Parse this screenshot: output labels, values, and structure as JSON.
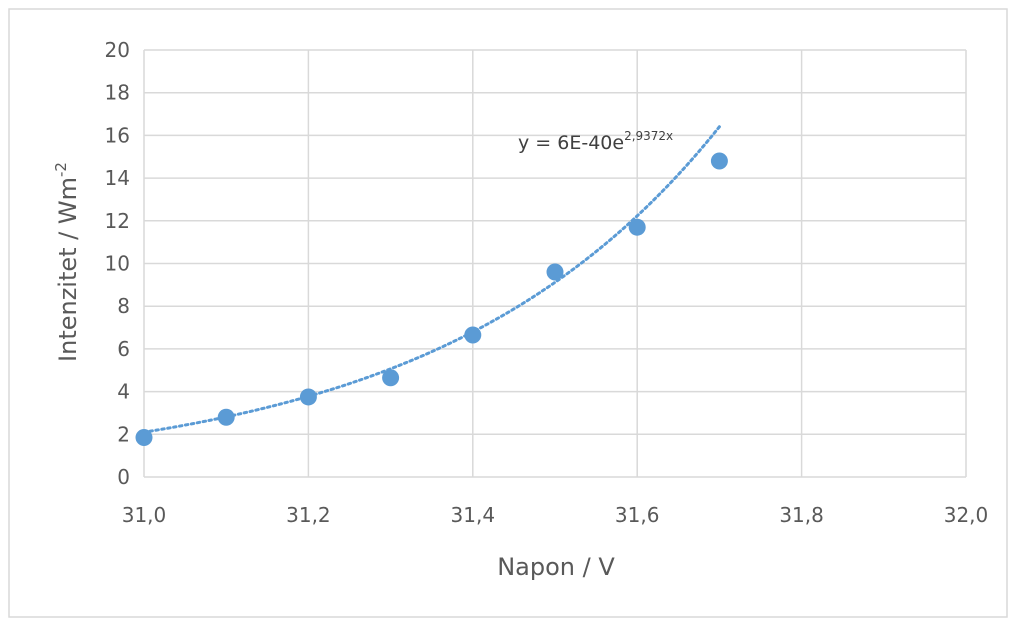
{
  "chart_data": {
    "type": "scatter",
    "title": "",
    "xlabel": "Napon / V",
    "ylabel": {
      "main": "Intenzitet  / Wm",
      "superscript": "-2"
    },
    "xlim": [
      31.0,
      32.0
    ],
    "ylim": [
      0,
      20
    ],
    "x_ticks": [
      "31,0",
      "31,2",
      "31,4",
      "31,6",
      "31,8",
      "32,0"
    ],
    "y_ticks": [
      "0",
      "2",
      "4",
      "6",
      "8",
      "10",
      "12",
      "14",
      "16",
      "18",
      "20"
    ],
    "grid": true,
    "series": [
      {
        "x": [
          31.0,
          31.1,
          31.2,
          31.3,
          31.4,
          31.5,
          31.6,
          31.7
        ],
        "y": [
          1.85,
          2.8,
          3.75,
          4.65,
          6.65,
          9.6,
          11.7,
          14.8
        ]
      }
    ],
    "trendline": {
      "type": "exponential",
      "a": 6e-40,
      "b": 2.9372,
      "x_range": [
        31.0,
        31.7
      ],
      "label": {
        "base": "y = 6E-40e",
        "exponent": "2,9372x"
      }
    },
    "colors": {
      "marker": "#5b9bd5",
      "trendline": "#5b9bd5",
      "grid": "#d9d9d9",
      "text": "#595959",
      "border": "#d9d9d9"
    }
  }
}
